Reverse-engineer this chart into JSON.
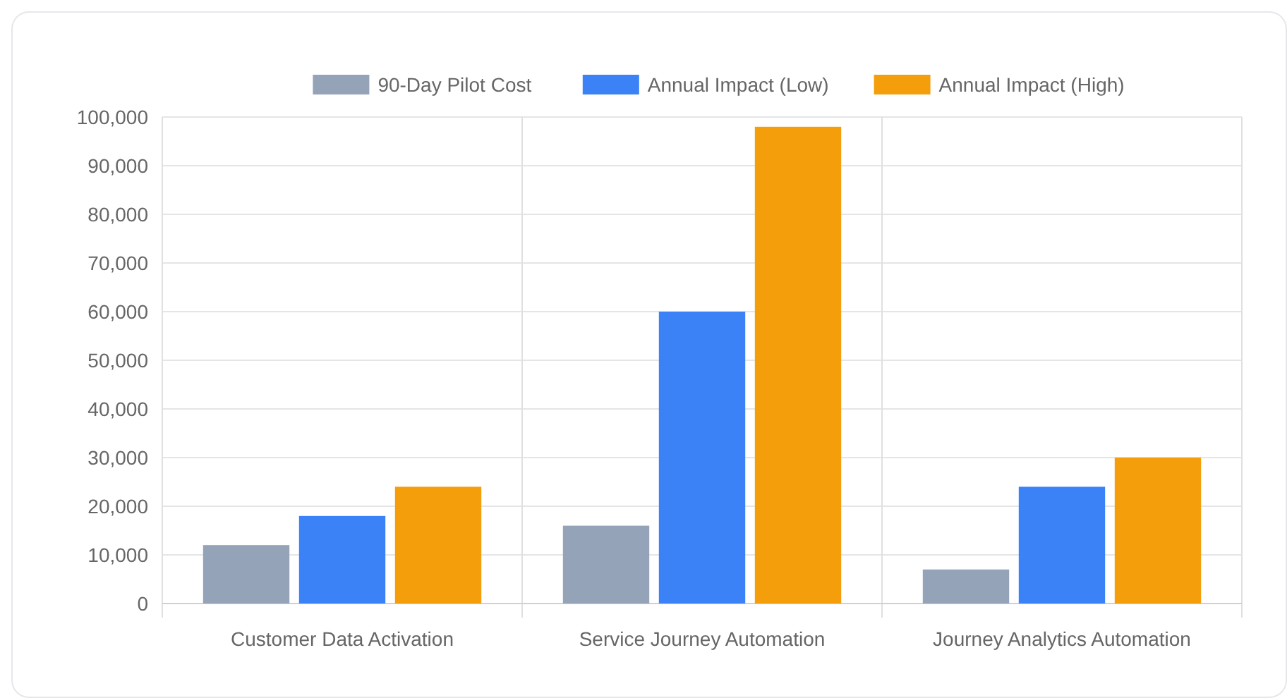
{
  "chart_data": {
    "type": "bar",
    "categories": [
      "Customer Data Activation",
      "Service Journey Automation",
      "Journey Analytics Automation"
    ],
    "series": [
      {
        "name": "90-Day Pilot Cost",
        "color": "#94a3b8",
        "values": [
          12000,
          16000,
          7000
        ]
      },
      {
        "name": "Annual Impact (Low)",
        "color": "#3b82f6",
        "values": [
          18000,
          60000,
          24000
        ]
      },
      {
        "name": "Annual Impact (High)",
        "color": "#f59e0b",
        "values": [
          24000,
          98000,
          30000
        ]
      }
    ],
    "ylim": [
      0,
      100000
    ],
    "yticks": [
      {
        "value": 0,
        "label": "0"
      },
      {
        "value": 10000,
        "label": "10,000"
      },
      {
        "value": 20000,
        "label": "20,000"
      },
      {
        "value": 30000,
        "label": "30,000"
      },
      {
        "value": 40000,
        "label": "40,000"
      },
      {
        "value": 50000,
        "label": "50,000"
      },
      {
        "value": 60000,
        "label": "60,000"
      },
      {
        "value": 70000,
        "label": "70,000"
      },
      {
        "value": 80000,
        "label": "80,000"
      },
      {
        "value": 90000,
        "label": "90,000"
      },
      {
        "value": 100000,
        "label": "100,000"
      }
    ],
    "grid": true,
    "legend": "top"
  }
}
